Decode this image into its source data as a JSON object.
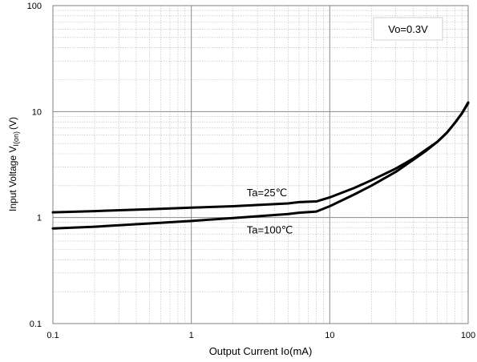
{
  "chart_data": {
    "type": "line",
    "x_scale": "log",
    "y_scale": "log",
    "xlim": [
      0.1,
      100
    ],
    "ylim": [
      0.1,
      100
    ],
    "xlabel": "Output Current Io(mA)",
    "ylabel": {
      "main": "Input Voltage V",
      "subscript": "I(on)",
      "unit": "(V)"
    },
    "x_ticks": [
      {
        "value": 0.1,
        "label": "0.1"
      },
      {
        "value": 1,
        "label": "1"
      },
      {
        "value": 10,
        "label": "10"
      },
      {
        "value": 100,
        "label": "100"
      }
    ],
    "y_ticks": [
      {
        "value": 0.1,
        "label": "0.1"
      },
      {
        "value": 1,
        "label": "1"
      },
      {
        "value": 10,
        "label": "10"
      },
      {
        "value": 100,
        "label": "100"
      }
    ],
    "grid": true,
    "minor_grid": true,
    "condition_box": "Vo=0.3V",
    "series": [
      {
        "name": "Ta=25℃",
        "color": "#000000",
        "points": [
          [
            0.1,
            1.12
          ],
          [
            0.2,
            1.15
          ],
          [
            0.5,
            1.2
          ],
          [
            1,
            1.24
          ],
          [
            2,
            1.28
          ],
          [
            5,
            1.36
          ],
          [
            6,
            1.4
          ],
          [
            8,
            1.42
          ],
          [
            10,
            1.55
          ],
          [
            15,
            1.9
          ],
          [
            20,
            2.25
          ],
          [
            30,
            2.9
          ],
          [
            40,
            3.6
          ],
          [
            50,
            4.4
          ],
          [
            60,
            5.2
          ],
          [
            70,
            6.3
          ],
          [
            80,
            7.8
          ],
          [
            90,
            9.6
          ],
          [
            100,
            12.2
          ]
        ]
      },
      {
        "name": "Ta=100℃",
        "color": "#000000",
        "points": [
          [
            0.1,
            0.79
          ],
          [
            0.2,
            0.82
          ],
          [
            0.5,
            0.88
          ],
          [
            1,
            0.93
          ],
          [
            2,
            0.99
          ],
          [
            5,
            1.08
          ],
          [
            6,
            1.11
          ],
          [
            8,
            1.14
          ],
          [
            10,
            1.28
          ],
          [
            15,
            1.65
          ],
          [
            20,
            2.0
          ],
          [
            30,
            2.7
          ],
          [
            40,
            3.5
          ],
          [
            50,
            4.3
          ],
          [
            60,
            5.2
          ],
          [
            70,
            6.3
          ],
          [
            80,
            7.8
          ],
          [
            90,
            9.6
          ],
          [
            100,
            12.0
          ]
        ]
      }
    ]
  }
}
